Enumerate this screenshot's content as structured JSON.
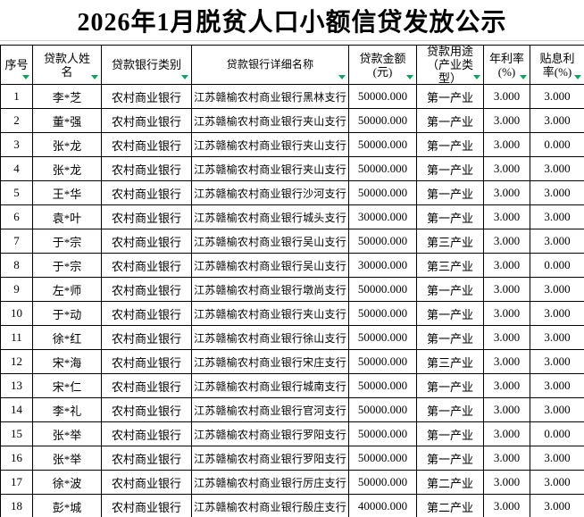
{
  "title": "2026年1月脱贫人口小额信贷发放公示",
  "colors": {
    "filter_arrow_green": "#1f9b60",
    "grid_border": "#000000",
    "sheet_gridline": "#d4d4d4",
    "background": "#ffffff",
    "text": "#000000"
  },
  "table": {
    "columns": [
      {
        "key": "index",
        "label": "序号",
        "lines": [
          "序号"
        ]
      },
      {
        "key": "name",
        "label": "贷款人姓名",
        "lines": [
          "贷款人姓",
          "名"
        ]
      },
      {
        "key": "bank_type",
        "label": "贷款银行类别",
        "lines": [
          "贷款银行类别"
        ]
      },
      {
        "key": "bank_detail",
        "label": "贷款银行详细名称",
        "lines": [
          "贷款银行详细名称"
        ]
      },
      {
        "key": "amount",
        "label": "贷款金额(元)",
        "lines": [
          "贷款金额",
          "(元)"
        ]
      },
      {
        "key": "purpose",
        "label": "贷款用途（产业类型）",
        "lines": [
          "贷款用途",
          "（产业类",
          "型）"
        ]
      },
      {
        "key": "annual_rate",
        "label": "年利率(%)",
        "lines": [
          "年利率",
          "(%)"
        ]
      },
      {
        "key": "subsidy_rate",
        "label": "贴息利率(%)",
        "lines": [
          "贴息利",
          "率(%)"
        ]
      }
    ],
    "rows": [
      [
        "1",
        "李*芝",
        "农村商业银行",
        "江苏赣榆农村商业银行黑林支行",
        "50000.000",
        "第一产业",
        "3.000",
        "3.000"
      ],
      [
        "2",
        "董*强",
        "农村商业银行",
        "江苏赣榆农村商业银行夹山支行",
        "50000.000",
        "第一产业",
        "3.000",
        "3.000"
      ],
      [
        "3",
        "张*龙",
        "农村商业银行",
        "江苏赣榆农村商业银行夹山支行",
        "50000.000",
        "第一产业",
        "3.000",
        "0.000"
      ],
      [
        "4",
        "张*龙",
        "农村商业银行",
        "江苏赣榆农村商业银行夹山支行",
        "50000.000",
        "第一产业",
        "3.000",
        "3.000"
      ],
      [
        "5",
        "王*华",
        "农村商业银行",
        "江苏赣榆农村商业银行沙河支行",
        "50000.000",
        "第一产业",
        "3.000",
        "3.000"
      ],
      [
        "6",
        "袁*叶",
        "农村商业银行",
        "江苏赣榆农村商业银行城头支行",
        "30000.000",
        "第一产业",
        "3.000",
        "3.000"
      ],
      [
        "7",
        "于*宗",
        "农村商业银行",
        "江苏赣榆农村商业银行吴山支行",
        "50000.000",
        "第三产业",
        "3.000",
        "3.000"
      ],
      [
        "8",
        "于*宗",
        "农村商业银行",
        "江苏赣榆农村商业银行吴山支行",
        "30000.000",
        "第三产业",
        "3.000",
        "0.000"
      ],
      [
        "9",
        "左*师",
        "农村商业银行",
        "江苏赣榆农村商业银行墩尚支行",
        "50000.000",
        "第一产业",
        "3.000",
        "3.000"
      ],
      [
        "10",
        "于*动",
        "农村商业银行",
        "江苏赣榆农村商业银行夹山支行",
        "50000.000",
        "第一产业",
        "3.000",
        "3.000"
      ],
      [
        "11",
        "徐*红",
        "农村商业银行",
        "江苏赣榆农村商业银行徐山支行",
        "50000.000",
        "第一产业",
        "3.000",
        "3.000"
      ],
      [
        "12",
        "宋*海",
        "农村商业银行",
        "江苏赣榆农村商业银行宋庄支行",
        "50000.000",
        "第三产业",
        "3.000",
        "3.000"
      ],
      [
        "13",
        "宋*仁",
        "农村商业银行",
        "江苏赣榆农村商业银行城南支行",
        "50000.000",
        "第一产业",
        "3.000",
        "3.000"
      ],
      [
        "14",
        "李*礼",
        "农村商业银行",
        "江苏赣榆农村商业银行官河支行",
        "50000.000",
        "第一产业",
        "3.000",
        "3.000"
      ],
      [
        "15",
        "张*举",
        "农村商业银行",
        "江苏赣榆农村商业银行罗阳支行",
        "50000.000",
        "第一产业",
        "3.000",
        "0.000"
      ],
      [
        "16",
        "张*举",
        "农村商业银行",
        "江苏赣榆农村商业银行罗阳支行",
        "50000.000",
        "第一产业",
        "3.000",
        "3.000"
      ],
      [
        "17",
        "徐*波",
        "农村商业银行",
        "江苏赣榆农村商业银行厉庄支行",
        "50000.000",
        "第二产业",
        "3.000",
        "3.000"
      ],
      [
        "18",
        "彭*城",
        "农村商业银行",
        "江苏赣榆农村商业银行殷庄支行",
        "40000.000",
        "第二产业",
        "3.000",
        "3.000"
      ]
    ]
  }
}
